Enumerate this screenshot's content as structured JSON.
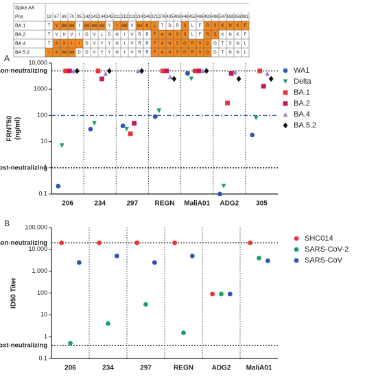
{
  "table": {
    "header": [
      "Spike AA",
      "Pos"
    ],
    "positions": [
      "19",
      "67",
      "69",
      "70",
      "95",
      "142",
      "143",
      "144",
      "145",
      "211",
      "212",
      "213",
      "214",
      "346",
      "371",
      "376",
      "405",
      "408",
      "446",
      "452",
      "486",
      "493",
      "496",
      "547",
      "658",
      "856",
      "981"
    ],
    "highlight_color": "#f08a24",
    "rows": [
      {
        "name": "BA.1",
        "cells": [
          "T",
          "V",
          "del",
          "del",
          "I",
          "del",
          "del",
          "del",
          "Y",
          "I",
          "del",
          "V",
          "ins",
          "K",
          "L",
          "T",
          "D",
          "R",
          "S",
          "L",
          "F",
          "R",
          "S",
          "K",
          "N",
          "K",
          "F"
        ],
        "highlighted": [
          1,
          2,
          3,
          5,
          6,
          7,
          9,
          10,
          12,
          13,
          14,
          18,
          21,
          22,
          23,
          24,
          25,
          26
        ]
      },
      {
        "name": "BA.2",
        "cells": [
          "T",
          "V",
          "H",
          "V",
          "I",
          "G",
          "V",
          "L",
          "D",
          "N",
          "I",
          "V",
          "R",
          "R",
          "F",
          "A",
          "N",
          "S",
          "S",
          "L",
          "F",
          "R",
          "S",
          "K",
          "N",
          "K",
          "F"
        ],
        "highlighted": [
          14,
          15,
          16,
          17,
          18,
          21,
          22
        ]
      },
      {
        "name": "BA.4",
        "cells": [
          "T",
          "A",
          "X",
          "I",
          "I",
          "D",
          "V",
          "Y",
          "Y",
          "N",
          "I",
          "V",
          "R",
          "R",
          "F",
          "A",
          "N",
          "S",
          "G",
          "R",
          "V",
          "Q",
          "G",
          "T",
          "S",
          "N",
          "L"
        ],
        "highlighted": [
          1,
          2,
          3,
          4,
          14,
          15,
          16,
          17,
          18,
          19,
          20,
          21
        ]
      },
      {
        "name": "BA.5.2",
        "cells": [
          "I",
          "A",
          "del",
          "del",
          "D",
          "D",
          "V",
          "Y",
          "Y",
          "N",
          "I",
          "V",
          "R",
          "R",
          "F",
          "A",
          "N",
          "S",
          "G",
          "R",
          "V",
          "Q",
          "G",
          "T",
          "N",
          "N",
          "L"
        ],
        "highlighted": [
          0,
          1,
          2,
          3,
          14,
          15,
          16,
          17,
          18,
          19,
          20,
          21
        ]
      }
    ]
  },
  "chart_data": [
    {
      "type": "scatter",
      "panel": "A",
      "ylabel": [
        "FRNT50",
        "(ng/ml)"
      ],
      "log_scale": true,
      "categories": [
        "206",
        "234",
        "297",
        "REGN",
        "MaliA01",
        "ADG2",
        "305"
      ],
      "ylim": [
        0.1,
        10000
      ],
      "yticks": [
        0.1,
        1,
        10,
        100,
        {
          "value": 1000,
          "label": "1000"
        },
        {
          "value": 10000,
          "label": "10,000"
        }
      ],
      "reference_lines": [
        {
          "value": 5000,
          "label": "non-neutralizing",
          "color": "#111"
        },
        {
          "value": 1,
          "label": "most-neutralizing",
          "color": "#111"
        },
        {
          "value": 100,
          "color": "#3a5fcd"
        }
      ],
      "series": [
        {
          "name": "WA1",
          "color": "#2e56b0",
          "marker": "circle",
          "values": [
            0.2,
            30,
            40,
            90,
            4000,
            0.1,
            18
          ]
        },
        {
          "name": "Delta",
          "color": "#1aa06a",
          "marker": "triangle-down",
          "values": [
            7,
            50,
            30,
            150,
            2500,
            0.2,
            80
          ]
        },
        {
          "name": "BA.1",
          "color": "#e8333a",
          "marker": "square",
          "values": [
            5000,
            5000,
            20,
            5000,
            5000,
            300,
            5000
          ]
        },
        {
          "name": "BA.2",
          "color": "#c2185b",
          "marker": "square",
          "values": [
            5000,
            2500,
            50,
            5000,
            5000,
            4000,
            1300
          ]
        },
        {
          "name": "BA.4",
          "color": "#9b7fd4",
          "marker": "triangle-up",
          "values": [
            5000,
            4000,
            5000,
            3000,
            5000,
            4500,
            4000
          ]
        },
        {
          "name": "BA.5.2",
          "color": "#111111",
          "marker": "diamond",
          "values": [
            5000,
            5000,
            5000,
            2500,
            5000,
            2500,
            2500
          ]
        }
      ]
    },
    {
      "type": "scatter",
      "panel": "B",
      "ylabel": [
        "ID50 Titer"
      ],
      "log_scale": true,
      "categories": [
        "206",
        "234",
        "297",
        "REGN",
        "ADG2",
        "MaliA01"
      ],
      "ylim": [
        0.1,
        100000
      ],
      "yticks": [
        0.1,
        1,
        10,
        100,
        {
          "value": 1000,
          "label": "1,000"
        },
        {
          "value": 10000,
          "label": "10,000"
        },
        {
          "value": 100000,
          "label": "100,000"
        }
      ],
      "reference_lines": [
        {
          "value": 20000,
          "label": "non-neutralizing",
          "color": "#111"
        },
        {
          "value": 0.4,
          "label": "most-neutralizing",
          "color": "#111"
        }
      ],
      "series": [
        {
          "name": "SHC014",
          "color": "#e8333a",
          "marker": "circle",
          "values": [
            20000,
            20000,
            20000,
            20000,
            90,
            20000
          ]
        },
        {
          "name": "SARS-CoV-2",
          "color": "#1aa06a",
          "marker": "circle",
          "values": [
            0.5,
            4,
            30,
            1.5,
            90,
            4000
          ]
        },
        {
          "name": "SARS-CoV",
          "color": "#2e56b0",
          "marker": "circle",
          "values": [
            2500,
            5000,
            2500,
            5000,
            90,
            3000
          ]
        }
      ]
    }
  ]
}
